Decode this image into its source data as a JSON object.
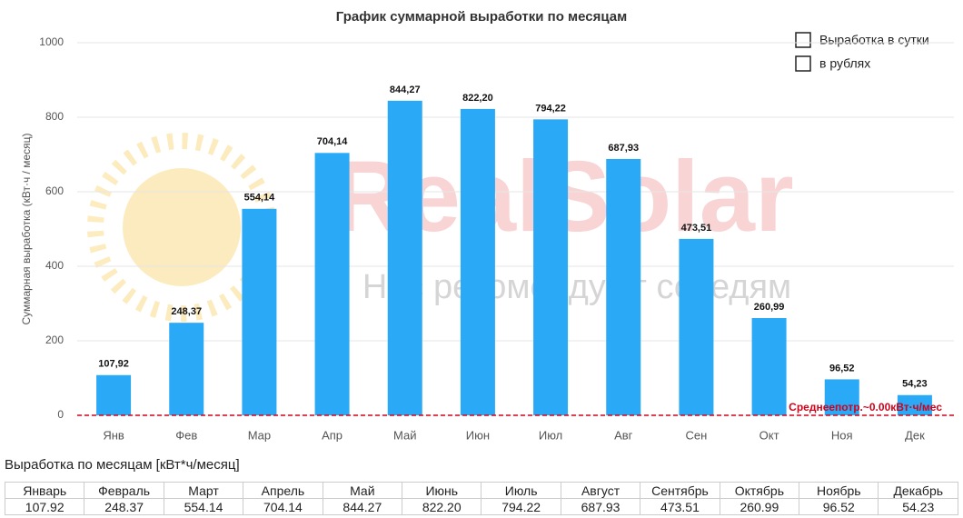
{
  "chart_data": {
    "type": "bar",
    "title": "График суммарной выработки по месяцам",
    "y_label": "Суммарная выработка (кВт·ч / месяц)",
    "categories": [
      "Янв",
      "Фев",
      "Мар",
      "Апр",
      "Май",
      "Июн",
      "Июл",
      "Авг",
      "Сен",
      "Окт",
      "Ноя",
      "Дек"
    ],
    "values": [
      107.92,
      248.37,
      554.14,
      704.14,
      844.27,
      822.2,
      794.22,
      687.93,
      473.51,
      260.99,
      96.52,
      54.23
    ],
    "value_labels": [
      "107,92",
      "248,37",
      "554,14",
      "704,14",
      "844,27",
      "822,20",
      "794,22",
      "687,93",
      "473,51",
      "260,99",
      "96,52",
      "54,23"
    ],
    "color": "#2aa9f6",
    "ylim": [
      0,
      1000
    ],
    "yticks": [
      0,
      200,
      400,
      600,
      800,
      1000
    ],
    "grid": true,
    "reference_line": {
      "value": 0,
      "label": "Среднеепотр.~0.00кВт·ч/мес",
      "color": "#d0021b"
    },
    "legend_options": [
      "Выработка в сутки",
      "в рублях"
    ],
    "watermark": {
      "title": "RealSolar",
      "subtitle": "Нас рекомендуют соседям"
    }
  },
  "table": {
    "title": "Выработка по месяцам [кВт*ч/месяц]",
    "header": [
      "Январь",
      "Февраль",
      "Март",
      "Апрель",
      "Май",
      "Июнь",
      "Июль",
      "Август",
      "Сентябрь",
      "Октябрь",
      "Ноябрь",
      "Декабрь"
    ],
    "rows": [
      [
        "107.92",
        "248.37",
        "554.14",
        "704.14",
        "844.27",
        "822.20",
        "794.22",
        "687.93",
        "473.51",
        "260.99",
        "96.52",
        "54.23"
      ]
    ]
  }
}
